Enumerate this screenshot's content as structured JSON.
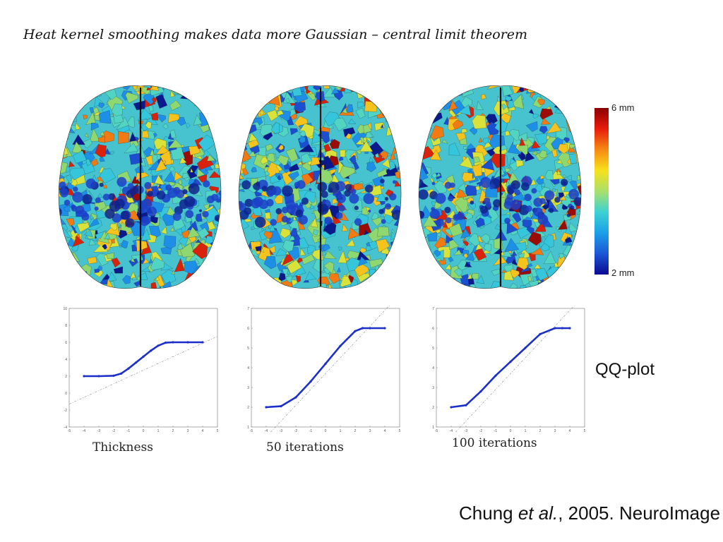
{
  "title": "Heat kernel smoothing makes data more Gaussian – central limit theorem",
  "colorbar": {
    "max_label": "6 mm",
    "min_label": "2 mm"
  },
  "panels": [
    {
      "caption": "Thickness"
    },
    {
      "caption": "50 iterations"
    },
    {
      "caption": "100 iterations"
    }
  ],
  "qq_label": "QQ-plot",
  "citation": {
    "before": "Chung ",
    "italic": "et al.",
    "after": ", 2005. NeuroImage"
  },
  "chart_data": [
    {
      "type": "scatter",
      "x": [
        -4,
        -3,
        -2,
        -1.5,
        -1,
        -0.5,
        0,
        0.5,
        1,
        1.5,
        2,
        3,
        4
      ],
      "y": [
        2,
        2,
        2.05,
        2.3,
        2.9,
        3.6,
        4.3,
        5.0,
        5.6,
        5.95,
        6,
        6,
        6
      ],
      "xlim": [
        -5,
        5
      ],
      "ylim": [
        -4,
        10
      ],
      "xticks": [
        "-5",
        "-4",
        "-3",
        "-2",
        "-1",
        "0",
        "1",
        "2",
        "3",
        "4",
        "5"
      ],
      "yticks": [
        "-4",
        "-2",
        "0",
        "2",
        "4",
        "6",
        "8",
        "10"
      ]
    },
    {
      "type": "scatter",
      "x": [
        -4,
        -3,
        -2,
        -1,
        0,
        1,
        2,
        2.5,
        3,
        4
      ],
      "y": [
        2,
        2.05,
        2.5,
        3.3,
        4.2,
        5.1,
        5.85,
        6,
        6,
        6
      ],
      "xlim": [
        -5,
        5
      ],
      "ylim": [
        1,
        7
      ],
      "xticks": [
        "-5",
        "-4",
        "-3",
        "-2",
        "-1",
        "0",
        "1",
        "2",
        "3",
        "4",
        "5"
      ],
      "yticks": [
        "1",
        "2",
        "3",
        "4",
        "5",
        "6",
        "7"
      ]
    },
    {
      "type": "scatter",
      "x": [
        -4,
        -3,
        -2,
        -1,
        0,
        1,
        2,
        3,
        3.5,
        4
      ],
      "y": [
        2,
        2.1,
        2.8,
        3.6,
        4.3,
        5.0,
        5.7,
        6,
        6,
        6
      ],
      "xlim": [
        -5,
        5
      ],
      "ylim": [
        1,
        7
      ],
      "xticks": [
        "-5",
        "-4",
        "-3",
        "-2",
        "-1",
        "0",
        "1",
        "2",
        "3",
        "4",
        "5"
      ],
      "yticks": [
        "1",
        "2",
        "3",
        "4",
        "5",
        "6",
        "7"
      ]
    }
  ]
}
